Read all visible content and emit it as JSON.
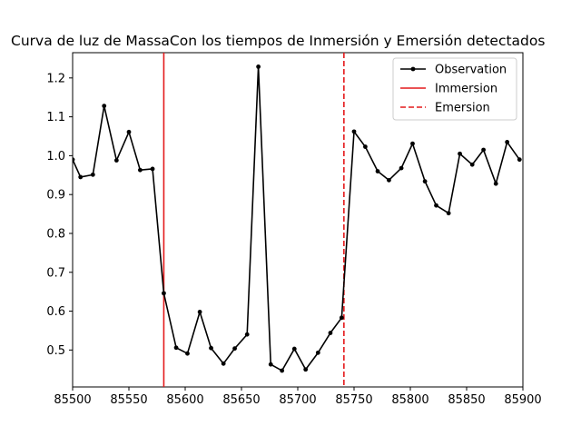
{
  "chart_data": {
    "type": "line",
    "title": "Curva de luz de MassaCon los tiempos de Inmersión y Emersión detectados",
    "xlabel": "",
    "ylabel": "",
    "xlim": [
      85500,
      85900
    ],
    "ylim": [
      0.405,
      1.265
    ],
    "xticks": [
      85500,
      85550,
      85600,
      85650,
      85700,
      85750,
      85800,
      85850,
      85900
    ],
    "yticks": [
      0.5,
      0.6,
      0.7,
      0.8,
      0.9,
      1.0,
      1.1,
      1.2
    ],
    "grid": false,
    "legend_position": "top-right",
    "series": [
      {
        "name": "Observation",
        "color": "#000000",
        "marker": "dot",
        "x": [
          85500,
          85507,
          85518,
          85528,
          85539,
          85550,
          85560,
          85571,
          85581,
          85592,
          85602,
          85613,
          85623,
          85634,
          85644,
          85655,
          85665,
          85676,
          85686,
          85697,
          85707,
          85718,
          85729,
          85739,
          85750,
          85760,
          85771,
          85781,
          85792,
          85802,
          85813,
          85823,
          85834,
          85844,
          85855,
          85865,
          85876,
          85886,
          85897
        ],
        "y": [
          0.99,
          0.945,
          0.951,
          1.128,
          0.988,
          1.061,
          0.963,
          0.966,
          0.646,
          0.506,
          0.491,
          0.598,
          0.505,
          0.465,
          0.504,
          0.54,
          1.229,
          0.463,
          0.447,
          0.503,
          0.45,
          0.493,
          0.544,
          0.583,
          1.062,
          1.023,
          0.96,
          0.937,
          0.968,
          1.031,
          0.934,
          0.872,
          0.852,
          1.005,
          0.977,
          1.015,
          0.928,
          1.035,
          0.99
        ]
      }
    ],
    "vlines": [
      {
        "name": "Immersion",
        "x": 85581,
        "color": "#e41a1c",
        "style": "solid"
      },
      {
        "name": "Emersion",
        "x": 85741,
        "color": "#e41a1c",
        "style": "dashed"
      }
    ]
  }
}
